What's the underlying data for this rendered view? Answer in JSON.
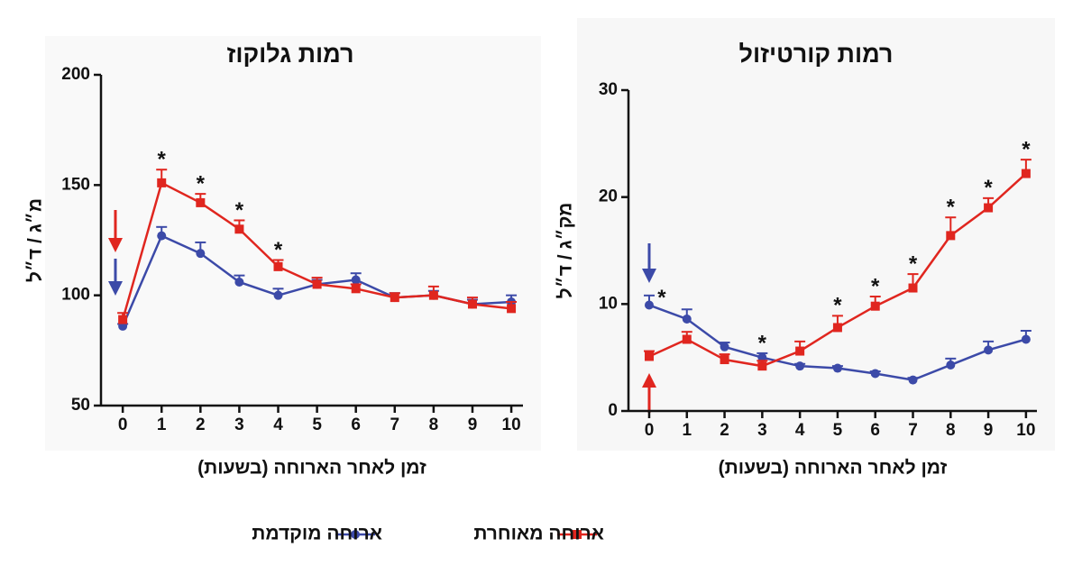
{
  "chart_data": [
    {
      "type": "line",
      "title": "רמות גלוקוז",
      "x_label": "זמן לאחר הארוחה (בשעות)",
      "y_label": "מ״ג / ד״ל",
      "x": [
        0,
        1,
        2,
        3,
        4,
        5,
        6,
        7,
        8,
        9,
        10
      ],
      "xlim": [
        -0.56,
        10.3
      ],
      "xticks": [
        0,
        1,
        2,
        3,
        4,
        5,
        6,
        7,
        8,
        9,
        10
      ],
      "ylim": [
        50,
        200
      ],
      "yticks": [
        50,
        100,
        150,
        200
      ],
      "series": [
        {
          "name": "ארוחה מוקדמת",
          "color": "#3c4aa8",
          "marker": "circle",
          "values": [
            86,
            127,
            119,
            106,
            100,
            105,
            107,
            99,
            100,
            96,
            97
          ],
          "errors": [
            1,
            4,
            5,
            3,
            3,
            2,
            3,
            2,
            2,
            2,
            3
          ]
        },
        {
          "name": "ארוחה מאוחרת",
          "color": "#e0261f",
          "marker": "square",
          "values": [
            89,
            151,
            142,
            130,
            113,
            105,
            103,
            99,
            100,
            96,
            94
          ],
          "errors": [
            3,
            6,
            4,
            4,
            3,
            3,
            2,
            2,
            4,
            3,
            3
          ]
        }
      ],
      "markers": [
        null,
        "*",
        "*",
        "*",
        "*",
        null,
        null,
        null,
        null,
        null,
        null
      ]
    },
    {
      "type": "line",
      "title": "רמות קורטיזול",
      "x_label": "זמן לאחר הארוחה (בשעות)",
      "y_label": "מק״ג / ד״ל",
      "x": [
        0,
        1,
        2,
        3,
        4,
        5,
        6,
        7,
        8,
        9,
        10
      ],
      "xlim": [
        -0.55,
        10.29
      ],
      "xticks": [
        0,
        1,
        2,
        3,
        4,
        5,
        6,
        7,
        8,
        9,
        10
      ],
      "ylim": [
        0,
        30
      ],
      "yticks": [
        0,
        10,
        20,
        30
      ],
      "series": [
        {
          "color": "#3c4aa8",
          "marker": "circle",
          "values": [
            9.9,
            8.6,
            6.0,
            5.0,
            4.2,
            4.0,
            3.5,
            2.9,
            4.3,
            5.7,
            6.7
          ],
          "errors": [
            0.9,
            0.9,
            0.4,
            0.4,
            0.2,
            0.2,
            0.2,
            0.2,
            0.6,
            0.8,
            0.8
          ]
        },
        {
          "color": "#e0261f",
          "marker": "square",
          "values": [
            5.1,
            6.7,
            4.8,
            4.2,
            5.6,
            7.8,
            9.8,
            11.5,
            16.4,
            19.0,
            22.2
          ],
          "errors": [
            0.5,
            0.7,
            0.5,
            0.5,
            0.9,
            1.1,
            0.9,
            1.3,
            1.7,
            0.9,
            1.3
          ]
        }
      ],
      "markers": [
        "*",
        null,
        null,
        "*",
        null,
        "*",
        "*",
        "*",
        "*",
        "*",
        "*"
      ]
    }
  ]
}
